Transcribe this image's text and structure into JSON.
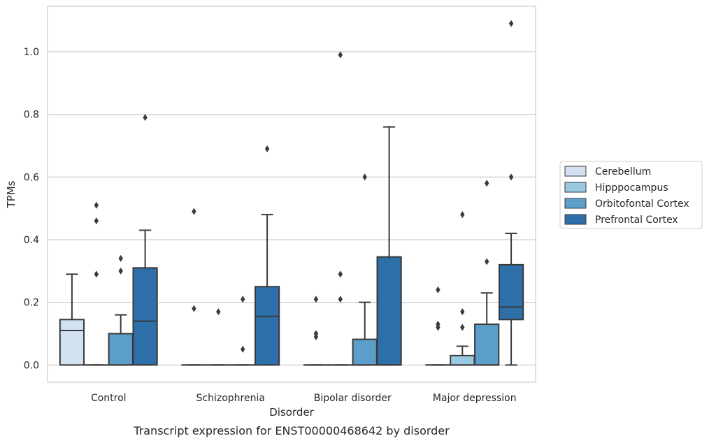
{
  "chart_data": {
    "type": "box",
    "caption": "Transcript expression for ENST00000468642 by disorder",
    "xlabel": "Disorder",
    "ylabel": "TPMs",
    "ylim": [
      -0.055,
      1.145
    ],
    "yticks": [
      0.0,
      0.2,
      0.4,
      0.6,
      0.8,
      1.0
    ],
    "ytick_labels": [
      "0.0",
      "0.2",
      "0.4",
      "0.6",
      "0.8",
      "1.0"
    ],
    "grid": true,
    "legend_position": "right",
    "categories": [
      "Control",
      "Schizophrenia",
      "Bipolar disorder",
      "Major depression"
    ],
    "series": [
      {
        "name": "Cerebellum",
        "color": "#d2e2f1",
        "boxes": [
          {
            "q1": 0.0,
            "median": 0.11,
            "q3": 0.145,
            "whisker_low": 0.0,
            "whisker_high": 0.29,
            "outliers": []
          },
          {
            "q1": 0.0,
            "median": 0.0,
            "q3": 0.0,
            "whisker_low": 0.0,
            "whisker_high": 0.0,
            "outliers": [
              0.18,
              0.49
            ]
          },
          {
            "q1": 0.0,
            "median": 0.0,
            "q3": 0.0,
            "whisker_low": 0.0,
            "whisker_high": 0.0,
            "outliers": [
              0.09,
              0.1,
              0.21
            ]
          },
          {
            "q1": 0.0,
            "median": 0.0,
            "q3": 0.0,
            "whisker_low": 0.0,
            "whisker_high": 0.0,
            "outliers": [
              0.12,
              0.13,
              0.24
            ]
          }
        ]
      },
      {
        "name": "Hipppocampus",
        "color": "#9ac8e0",
        "boxes": [
          {
            "q1": 0.0,
            "median": 0.0,
            "q3": 0.0,
            "whisker_low": 0.0,
            "whisker_high": 0.0,
            "outliers": [
              0.29,
              0.46,
              0.51
            ]
          },
          {
            "q1": 0.0,
            "median": 0.0,
            "q3": 0.0,
            "whisker_low": 0.0,
            "whisker_high": 0.0,
            "outliers": [
              0.17
            ]
          },
          {
            "q1": 0.0,
            "median": 0.0,
            "q3": 0.0,
            "whisker_low": 0.0,
            "whisker_high": 0.0,
            "outliers": [
              0.21,
              0.29,
              0.99
            ]
          },
          {
            "q1": 0.0,
            "median": 0.0,
            "q3": 0.03,
            "whisker_low": 0.0,
            "whisker_high": 0.06,
            "outliers": [
              0.12,
              0.17,
              0.48
            ]
          }
        ]
      },
      {
        "name": "Orbitofontal Cortex",
        "color": "#5a9ec9",
        "boxes": [
          {
            "q1": 0.0,
            "median": 0.0,
            "q3": 0.1,
            "whisker_low": 0.0,
            "whisker_high": 0.16,
            "outliers": [
              0.3,
              0.34
            ]
          },
          {
            "q1": 0.0,
            "median": 0.0,
            "q3": 0.0,
            "whisker_low": 0.0,
            "whisker_high": 0.0,
            "outliers": [
              0.05,
              0.21
            ]
          },
          {
            "q1": 0.0,
            "median": 0.0,
            "q3": 0.082,
            "whisker_low": 0.0,
            "whisker_high": 0.2,
            "outliers": [
              0.6
            ]
          },
          {
            "q1": 0.0,
            "median": 0.0,
            "q3": 0.13,
            "whisker_low": 0.0,
            "whisker_high": 0.23,
            "outliers": [
              0.33,
              0.58
            ]
          }
        ]
      },
      {
        "name": "Prefrontal Cortex",
        "color": "#2d6fa8",
        "boxes": [
          {
            "q1": 0.0,
            "median": 0.14,
            "q3": 0.31,
            "whisker_low": 0.0,
            "whisker_high": 0.43,
            "outliers": [
              0.79
            ]
          },
          {
            "q1": 0.0,
            "median": 0.155,
            "q3": 0.25,
            "whisker_low": 0.0,
            "whisker_high": 0.48,
            "outliers": [
              0.69
            ]
          },
          {
            "q1": 0.0,
            "median": 0.0,
            "q3": 0.345,
            "whisker_low": 0.0,
            "whisker_high": 0.76,
            "outliers": []
          },
          {
            "q1": 0.145,
            "median": 0.185,
            "q3": 0.32,
            "whisker_low": 0.0,
            "whisker_high": 0.42,
            "outliers": [
              0.6,
              1.09
            ]
          }
        ]
      }
    ]
  }
}
